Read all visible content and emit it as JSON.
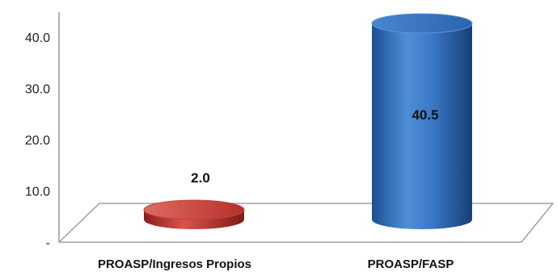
{
  "chart_data": {
    "type": "bar",
    "categories": [
      "PROASP/Ingresos Propios",
      "PROASP/FASP"
    ],
    "values": [
      2.0,
      40.5
    ],
    "data_labels": [
      "2.0",
      "40.5"
    ],
    "ylim": [
      0,
      40
    ],
    "yticks": [
      {
        "value": 0,
        "label": "-"
      },
      {
        "value": 10,
        "label": "10.0"
      },
      {
        "value": 20,
        "label": "20.0"
      },
      {
        "value": 30,
        "label": "30.0"
      },
      {
        "value": 40,
        "label": "40.0"
      }
    ],
    "colors": [
      "#b8302b",
      "#2e6bb5"
    ],
    "style": "3d-cylinder",
    "grid": false,
    "legend": "none"
  }
}
